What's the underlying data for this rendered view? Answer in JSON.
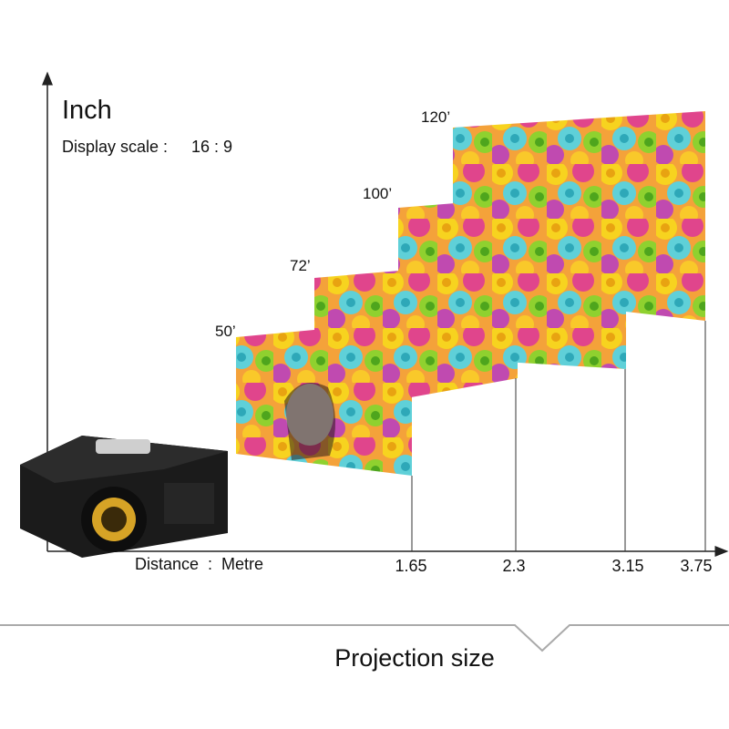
{
  "axis": {
    "vertical_label": "Inch",
    "display_scale_label": "Display scale :",
    "display_scale": "16 : 9",
    "horizontal_label": "Distance  :  Metre"
  },
  "screens": [
    {
      "size": "50’",
      "distance": "1.65"
    },
    {
      "size": "72’",
      "distance": "2.3"
    },
    {
      "size": "100’",
      "distance": "3.15"
    },
    {
      "size": "120’",
      "distance": "3.75"
    }
  ],
  "footer": {
    "title": "Projection size"
  }
}
